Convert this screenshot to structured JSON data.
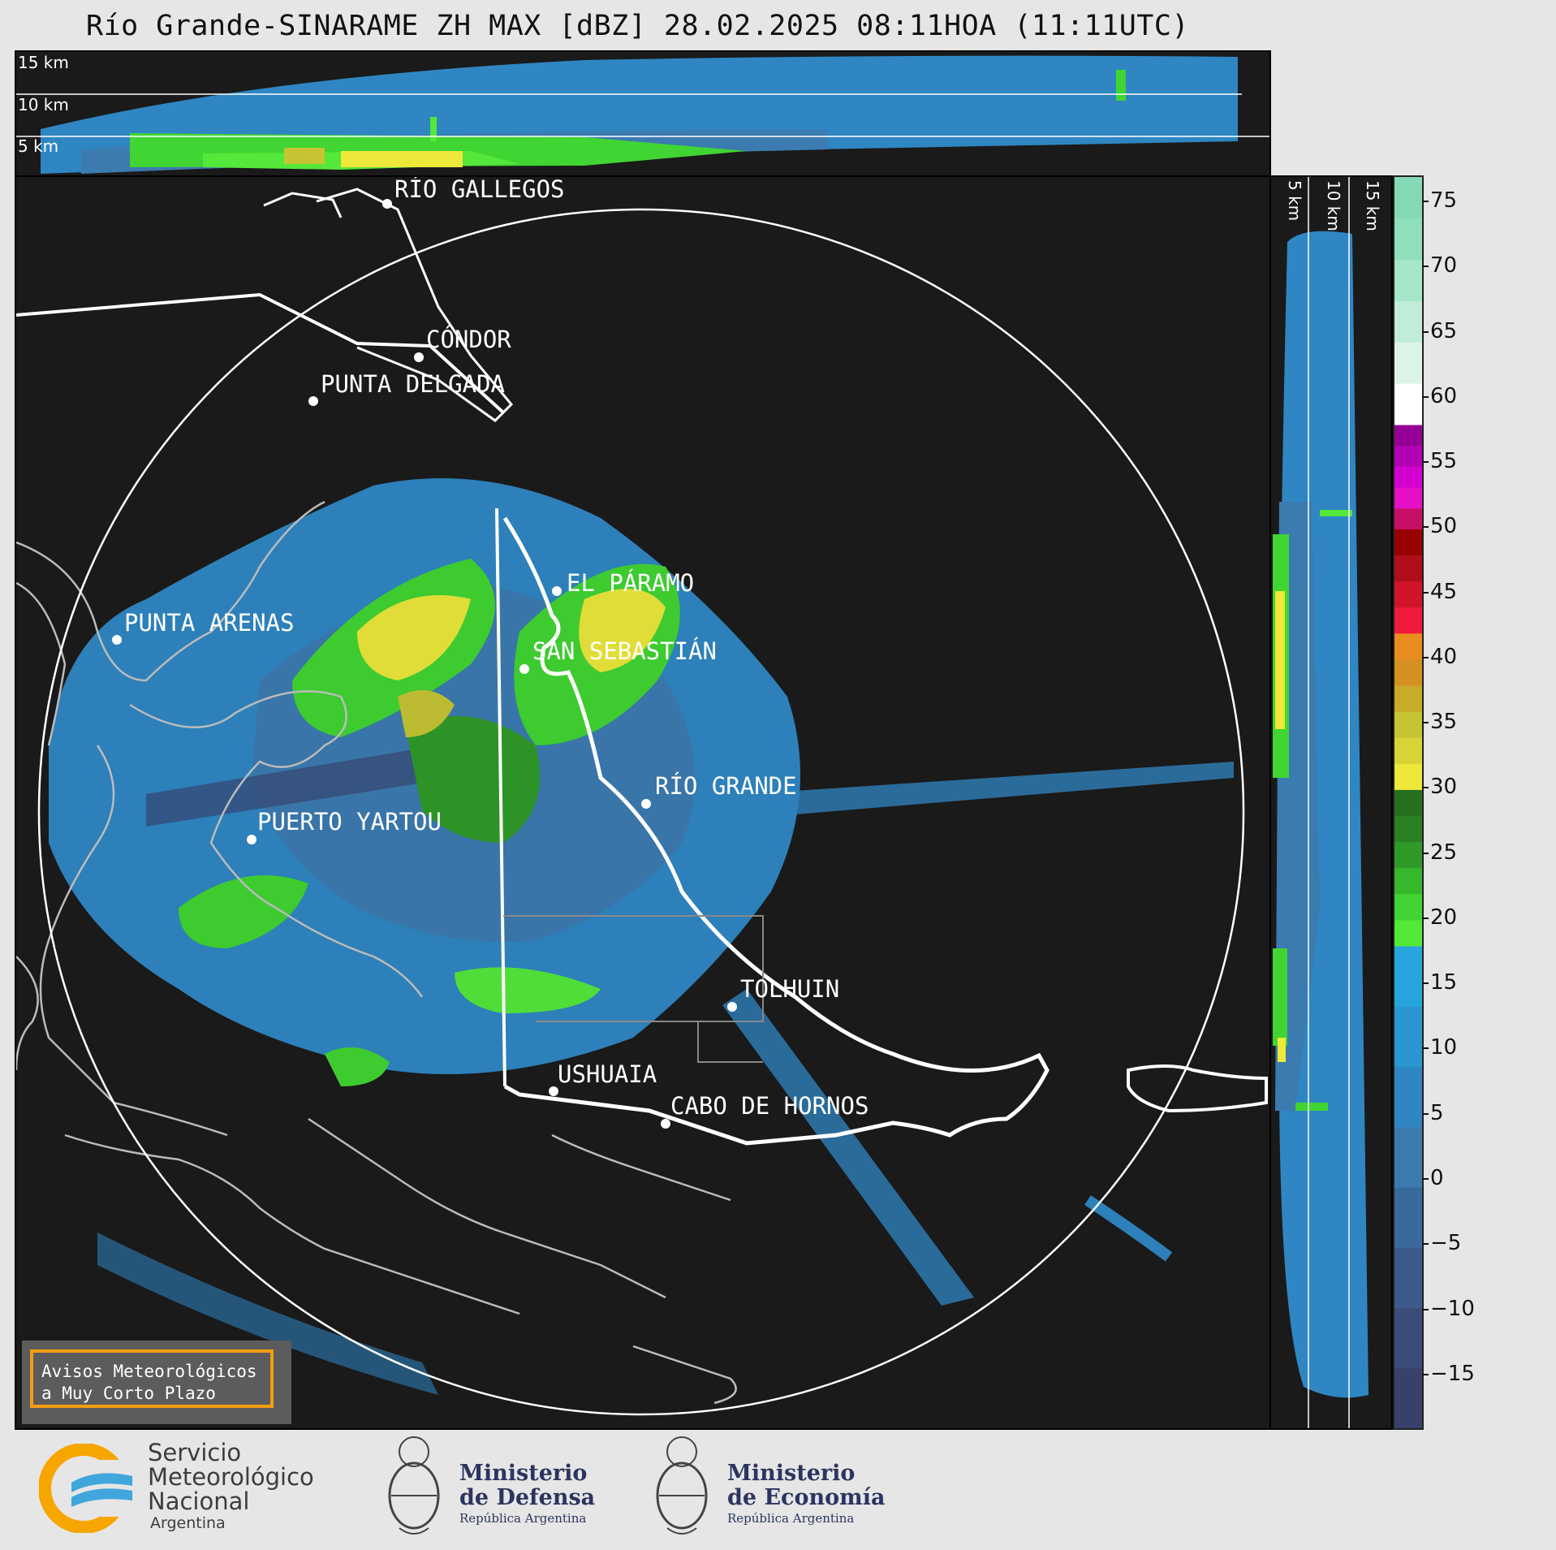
{
  "title": "Río Grande-SINARAME ZH MAX [dBZ] 28.02.2025 08:11HOA (11:11UTC)",
  "top_profile": {
    "levels": [
      "15 km",
      "10 km",
      "5 km"
    ]
  },
  "side_profile": {
    "levels": [
      "5 km",
      "10 km",
      "15 km"
    ]
  },
  "cities": [
    {
      "name": "RÍO GALLEGOS"
    },
    {
      "name": "CÓNDOR"
    },
    {
      "name": "PUNTA DELGADA"
    },
    {
      "name": "PUNTA ARENAS"
    },
    {
      "name": "EL PÁRAMO"
    },
    {
      "name": "SAN SEBASTIÁN"
    },
    {
      "name": "RÍO GRANDE"
    },
    {
      "name": "PUERTO YARTOU"
    },
    {
      "name": "TOLHUIN"
    },
    {
      "name": "USHUAIA"
    },
    {
      "name": "CABO DE HORNOS"
    }
  ],
  "colorbar": {
    "unit": "dBZ",
    "ticks": [
      "75",
      "70",
      "65",
      "60",
      "55",
      "50",
      "45",
      "40",
      "35",
      "30",
      "25",
      "20",
      "15",
      "10",
      "5",
      "0",
      "−5",
      "−10",
      "−15"
    ],
    "min": -19,
    "max": 77,
    "bands": [
      {
        "from": -19,
        "to": 18,
        "colors": [
          "#39406a",
          "#3c4c7a",
          "#3c5a8a",
          "#3a6a9c",
          "#3b7bb0",
          "#2f86c2",
          "#2a96d2",
          "#27a6de"
        ]
      },
      {
        "from": 18,
        "to": 30,
        "colors": [
          "#54e83a",
          "#40d532",
          "#35b82c",
          "#2f9a27",
          "#2a8224",
          "#277020"
        ]
      },
      {
        "from": 30,
        "to": 42,
        "colors": [
          "#ede83a",
          "#d8d437",
          "#c7c434",
          "#c9ab2a",
          "#d59022",
          "#ea8c20"
        ]
      },
      {
        "from": 42,
        "to": 50,
        "colors": [
          "#ee1b3c",
          "#d0152b",
          "#b00e1a",
          "#990000"
        ]
      },
      {
        "from": 50,
        "to": 58,
        "colors": [
          "#c80f68",
          "#e510c7",
          "#d400d2",
          "#b200b5",
          "#950097"
        ]
      },
      {
        "from": 58,
        "to": 77,
        "colors": [
          "#ffffff",
          "#dcf4e8",
          "#c0ecd8",
          "#a6e6c8",
          "#90dfbb",
          "#85dab5"
        ]
      }
    ]
  },
  "legend": {
    "line1": "Avisos Meteorológicos",
    "line2": "a Muy Corto Plazo"
  },
  "logos": {
    "smn": {
      "line1": "Servicio",
      "line2": "Meteorológico",
      "line3": "Nacional",
      "line4": "Argentina"
    },
    "defensa": {
      "line1": "Ministerio",
      "line2": "de Defensa",
      "line3": "República Argentina"
    },
    "economia": {
      "line1": "Ministerio",
      "line2": "de Economía",
      "line3": "República Argentina"
    }
  }
}
